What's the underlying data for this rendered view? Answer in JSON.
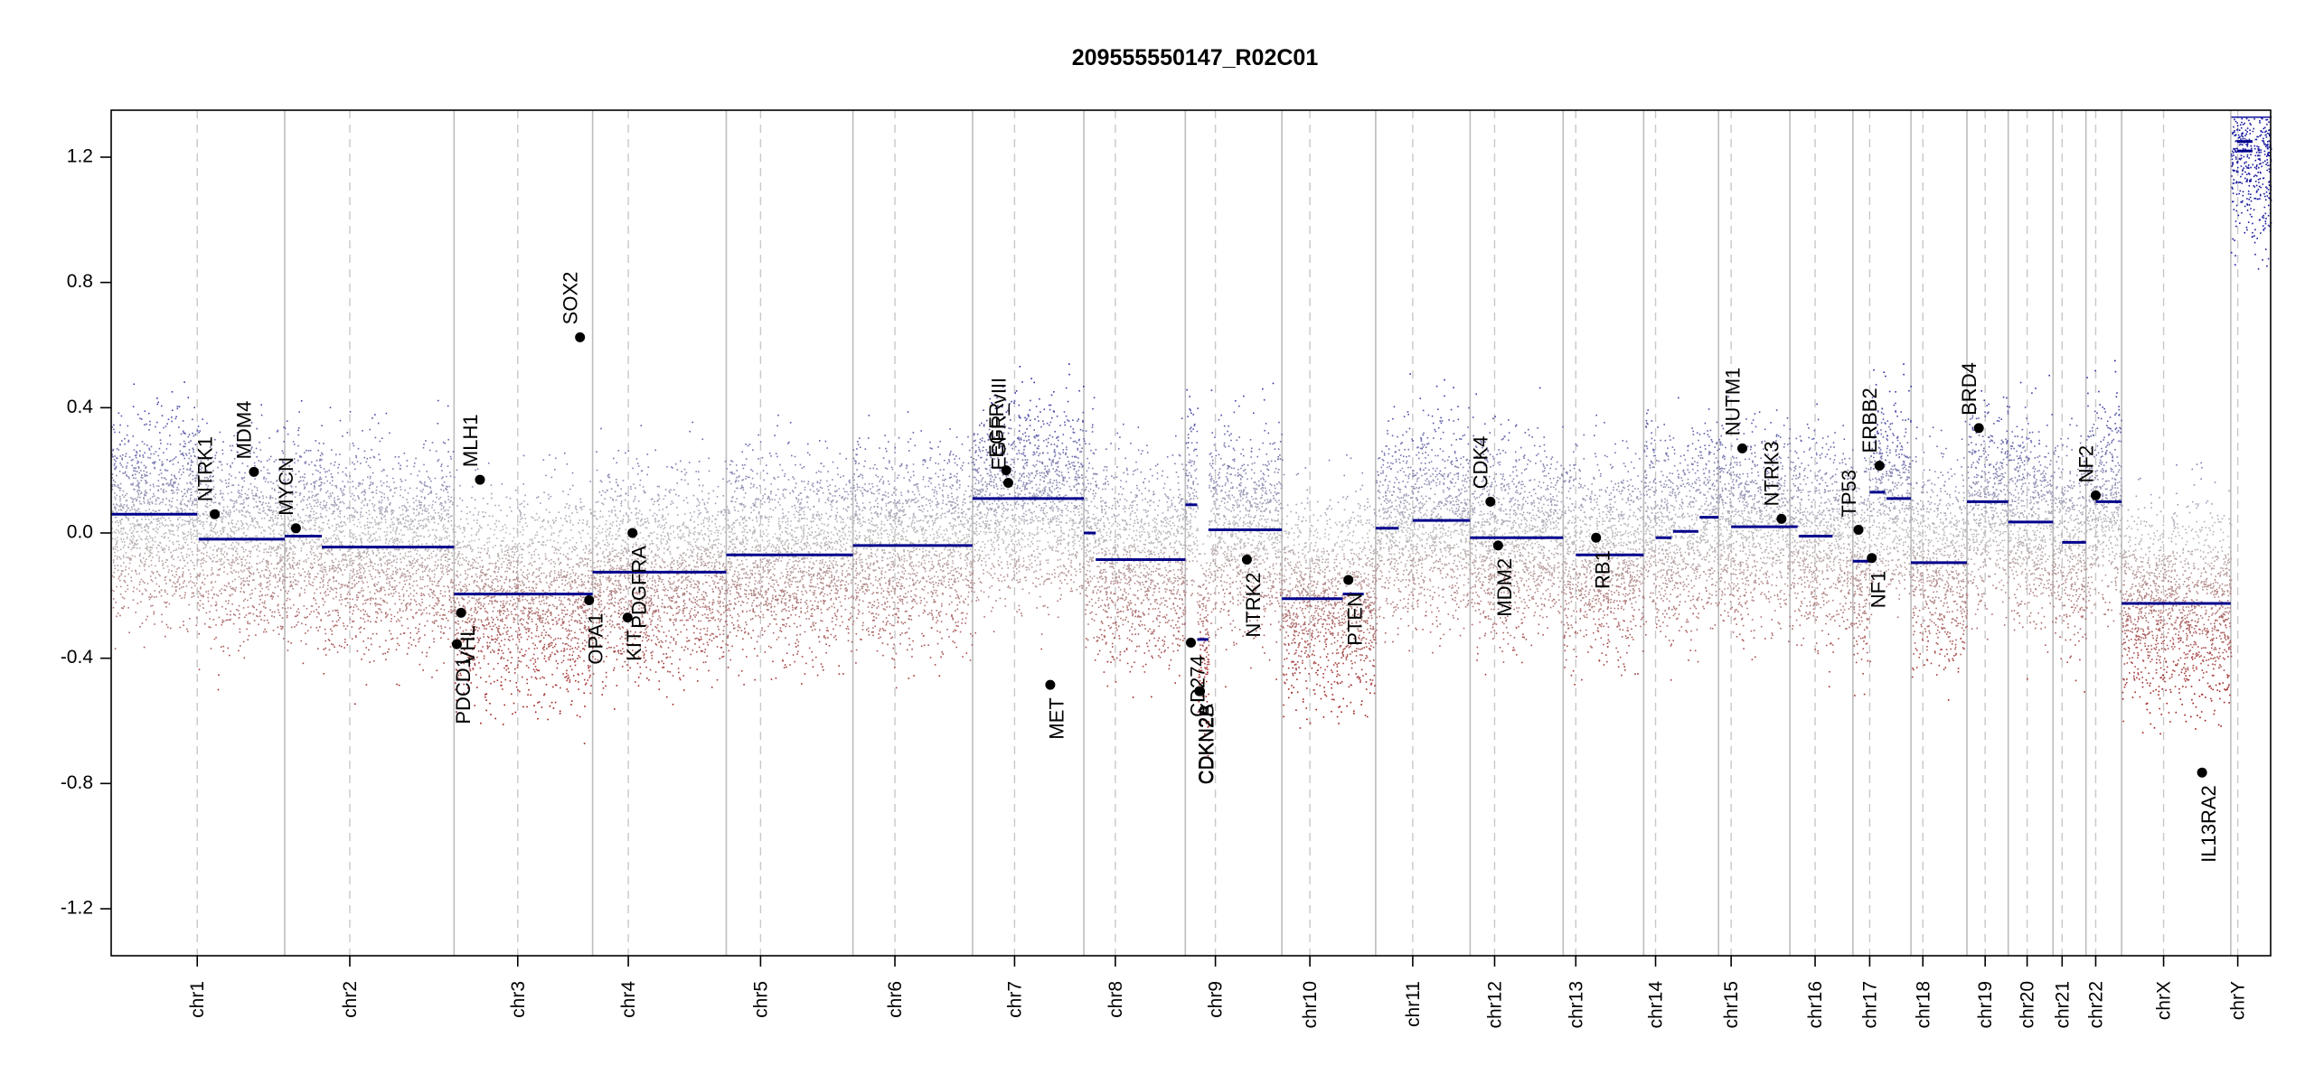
{
  "chart_data": {
    "type": "scatter",
    "title": "209555550147_R02C01",
    "xlabel": "",
    "ylabel": "",
    "ylim": [
      -1.35,
      1.35
    ],
    "y_ticks": [
      "-1.2",
      "-0.8",
      "-0.4",
      "0.0",
      "0.4",
      "0.8",
      "1.2"
    ],
    "y_tick_values": [
      -1.2,
      -0.8,
      -0.4,
      0.0,
      0.4,
      0.8,
      1.2
    ],
    "legend": "none",
    "grid": "vertical chromosome boundaries (solid) and centromeres (dashed)",
    "colors": {
      "gain": "#1a1aa0",
      "loss": "#a01a1a",
      "neutral": "#bbbbbb",
      "segment": "#00008b",
      "gene": "#000000",
      "boundary": "#bdbdbd"
    },
    "chromosomes": [
      {
        "name": "chr1",
        "start": 0,
        "end": 248,
        "centromere": 123,
        "segments": [
          [
            0,
            123,
            0.06
          ],
          [
            125,
            248,
            -0.02
          ]
        ]
      },
      {
        "name": "chr2",
        "start": 248,
        "end": 490,
        "centromere": 341,
        "segments": [
          [
            248,
            301,
            -0.01
          ],
          [
            301,
            490,
            -0.045
          ]
        ]
      },
      {
        "name": "chr3",
        "start": 490,
        "end": 688,
        "centromere": 581,
        "segments": [
          [
            490,
            688,
            -0.195
          ]
        ]
      },
      {
        "name": "chr4",
        "start": 688,
        "end": 879,
        "centromere": 739,
        "segments": [
          [
            688,
            879,
            -0.125
          ]
        ]
      },
      {
        "name": "chr5",
        "start": 879,
        "end": 1060,
        "centromere": 928,
        "segments": [
          [
            879,
            1060,
            -0.07
          ]
        ]
      },
      {
        "name": "chr6",
        "start": 1060,
        "end": 1231,
        "centromere": 1120,
        "segments": [
          [
            1060,
            1231,
            -0.04
          ]
        ]
      },
      {
        "name": "chr7",
        "start": 1231,
        "end": 1390,
        "centromere": 1291,
        "segments": [
          [
            1231,
            1390,
            0.11
          ]
        ]
      },
      {
        "name": "chr8",
        "start": 1390,
        "end": 1535,
        "centromere": 1435,
        "segments": [
          [
            1390,
            1407,
            0.0
          ],
          [
            1407,
            1535,
            -0.085
          ]
        ]
      },
      {
        "name": "chr9",
        "start": 1535,
        "end": 1673,
        "centromere": 1578,
        "segments": [
          [
            1535,
            1552,
            0.09
          ],
          [
            1552,
            1568,
            -0.34
          ],
          [
            1568,
            1673,
            0.01
          ]
        ]
      },
      {
        "name": "chr10",
        "start": 1673,
        "end": 1807,
        "centromere": 1713,
        "segments": [
          [
            1673,
            1760,
            -0.21
          ],
          [
            1760,
            1790,
            -0.195
          ]
        ]
      },
      {
        "name": "chr11",
        "start": 1807,
        "end": 1942,
        "centromere": 1860,
        "segments": [
          [
            1807,
            1840,
            0.015
          ],
          [
            1860,
            1942,
            0.04
          ]
        ]
      },
      {
        "name": "chr12",
        "start": 1942,
        "end": 2075,
        "centromere": 1977,
        "segments": [
          [
            1942,
            2075,
            -0.015
          ]
        ]
      },
      {
        "name": "chr13",
        "start": 2075,
        "end": 2190,
        "centromere": 2093,
        "segments": [
          [
            2093,
            2190,
            -0.07
          ]
        ]
      },
      {
        "name": "chr14",
        "start": 2190,
        "end": 2297,
        "centromere": 2207,
        "segments": [
          [
            2207,
            2230,
            -0.015
          ],
          [
            2232,
            2268,
            0.005
          ],
          [
            2270,
            2297,
            0.05
          ]
        ]
      },
      {
        "name": "chr15",
        "start": 2297,
        "end": 2399,
        "centromere": 2315,
        "segments": [
          [
            2315,
            2399,
            0.02
          ]
        ]
      },
      {
        "name": "chr16",
        "start": 2399,
        "end": 2489,
        "centromere": 2435,
        "segments": [
          [
            2399,
            2410,
            0.02
          ],
          [
            2412,
            2460,
            -0.01
          ]
        ]
      },
      {
        "name": "chr17",
        "start": 2489,
        "end": 2572,
        "centromere": 2513,
        "segments": [
          [
            2489,
            2513,
            -0.09
          ],
          [
            2513,
            2535,
            0.13
          ],
          [
            2537,
            2572,
            0.11
          ]
        ]
      },
      {
        "name": "chr18",
        "start": 2572,
        "end": 2652,
        "centromere": 2589,
        "segments": [
          [
            2572,
            2652,
            -0.095
          ]
        ]
      },
      {
        "name": "chr19",
        "start": 2652,
        "end": 2711,
        "centromere": 2678,
        "segments": [
          [
            2652,
            2711,
            0.1
          ]
        ]
      },
      {
        "name": "chr20",
        "start": 2711,
        "end": 2775,
        "centromere": 2738,
        "segments": [
          [
            2711,
            2775,
            0.035
          ]
        ]
      },
      {
        "name": "chr21",
        "start": 2775,
        "end": 2822,
        "centromere": 2788,
        "segments": [
          [
            2788,
            2822,
            -0.03
          ]
        ]
      },
      {
        "name": "chr22",
        "start": 2822,
        "end": 2873,
        "centromere": 2836,
        "segments": [
          [
            2836,
            2873,
            0.1
          ]
        ]
      },
      {
        "name": "chrX",
        "start": 2873,
        "end": 3029,
        "centromere": 2933,
        "segments": [
          [
            2873,
            3029,
            -0.225
          ]
        ]
      },
      {
        "name": "chrY",
        "start": 3029,
        "end": 3086,
        "centromere": 3039,
        "segments": [
          [
            3038,
            3060,
            1.25
          ],
          [
            3038,
            3060,
            1.22
          ]
        ]
      }
    ],
    "genes": [
      {
        "name": "NTRK1",
        "x": 148,
        "y": 0.06,
        "label_side": "above"
      },
      {
        "name": "MDM4",
        "x": 204,
        "y": 0.195,
        "label_side": "above"
      },
      {
        "name": "MYCN",
        "x": 264,
        "y": 0.015,
        "label_side": "above"
      },
      {
        "name": "PDCD1",
        "x": 494,
        "y": -0.355,
        "label_side": "below"
      },
      {
        "name": "VHL",
        "x": 500,
        "y": -0.255,
        "label_side": "below"
      },
      {
        "name": "MLH1",
        "x": 527,
        "y": 0.17,
        "label_side": "above"
      },
      {
        "name": "SOX2",
        "x": 670,
        "y": 0.625,
        "label_side": "above"
      },
      {
        "name": "OPA1",
        "x": 683,
        "y": -0.215,
        "label_side": "below"
      },
      {
        "name": "KIT",
        "x": 738,
        "y": -0.27,
        "label_side": "below"
      },
      {
        "name": "PDGFRA",
        "x": 745,
        "y": 0.0,
        "label_side": "below"
      },
      {
        "name": "EGFR",
        "x": 1279,
        "y": 0.2,
        "label_side": "above"
      },
      {
        "name": "EGFR_vIII",
        "x": 1282,
        "y": 0.16,
        "label_side": "above"
      },
      {
        "name": "MET",
        "x": 1342,
        "y": -0.485,
        "label_side": "below"
      },
      {
        "name": "CD274",
        "x": 1543,
        "y": -0.35,
        "label_side": "below"
      },
      {
        "name": "CDKN2A",
        "x": 1555,
        "y": -0.505,
        "label_side": "below"
      },
      {
        "name": "CDKN2B",
        "x": 1556,
        "y": -0.505,
        "label_side": "below"
      },
      {
        "name": "NTRK2",
        "x": 1623,
        "y": -0.085,
        "label_side": "below"
      },
      {
        "name": "PTEN",
        "x": 1768,
        "y": -0.15,
        "label_side": "below"
      },
      {
        "name": "CDK4",
        "x": 1971,
        "y": 0.1,
        "label_side": "above"
      },
      {
        "name": "MDM2",
        "x": 1982,
        "y": -0.04,
        "label_side": "below"
      },
      {
        "name": "RB1",
        "x": 2122,
        "y": -0.015,
        "label_side": "below"
      },
      {
        "name": "NUTM1",
        "x": 2331,
        "y": 0.27,
        "label_side": "above"
      },
      {
        "name": "NTRK3",
        "x": 2387,
        "y": 0.045,
        "label_side": "above"
      },
      {
        "name": "TP53",
        "x": 2497,
        "y": 0.01,
        "label_side": "above"
      },
      {
        "name": "NF1",
        "x": 2516,
        "y": -0.08,
        "label_side": "below"
      },
      {
        "name": "ERBB2",
        "x": 2527,
        "y": 0.215,
        "label_side": "above"
      },
      {
        "name": "BRD4",
        "x": 2669,
        "y": 0.335,
        "label_side": "above"
      },
      {
        "name": "NF2",
        "x": 2836,
        "y": 0.12,
        "label_side": "above"
      },
      {
        "name": "IL13RA2",
        "x": 2988,
        "y": -0.765,
        "label_side": "below"
      }
    ]
  }
}
